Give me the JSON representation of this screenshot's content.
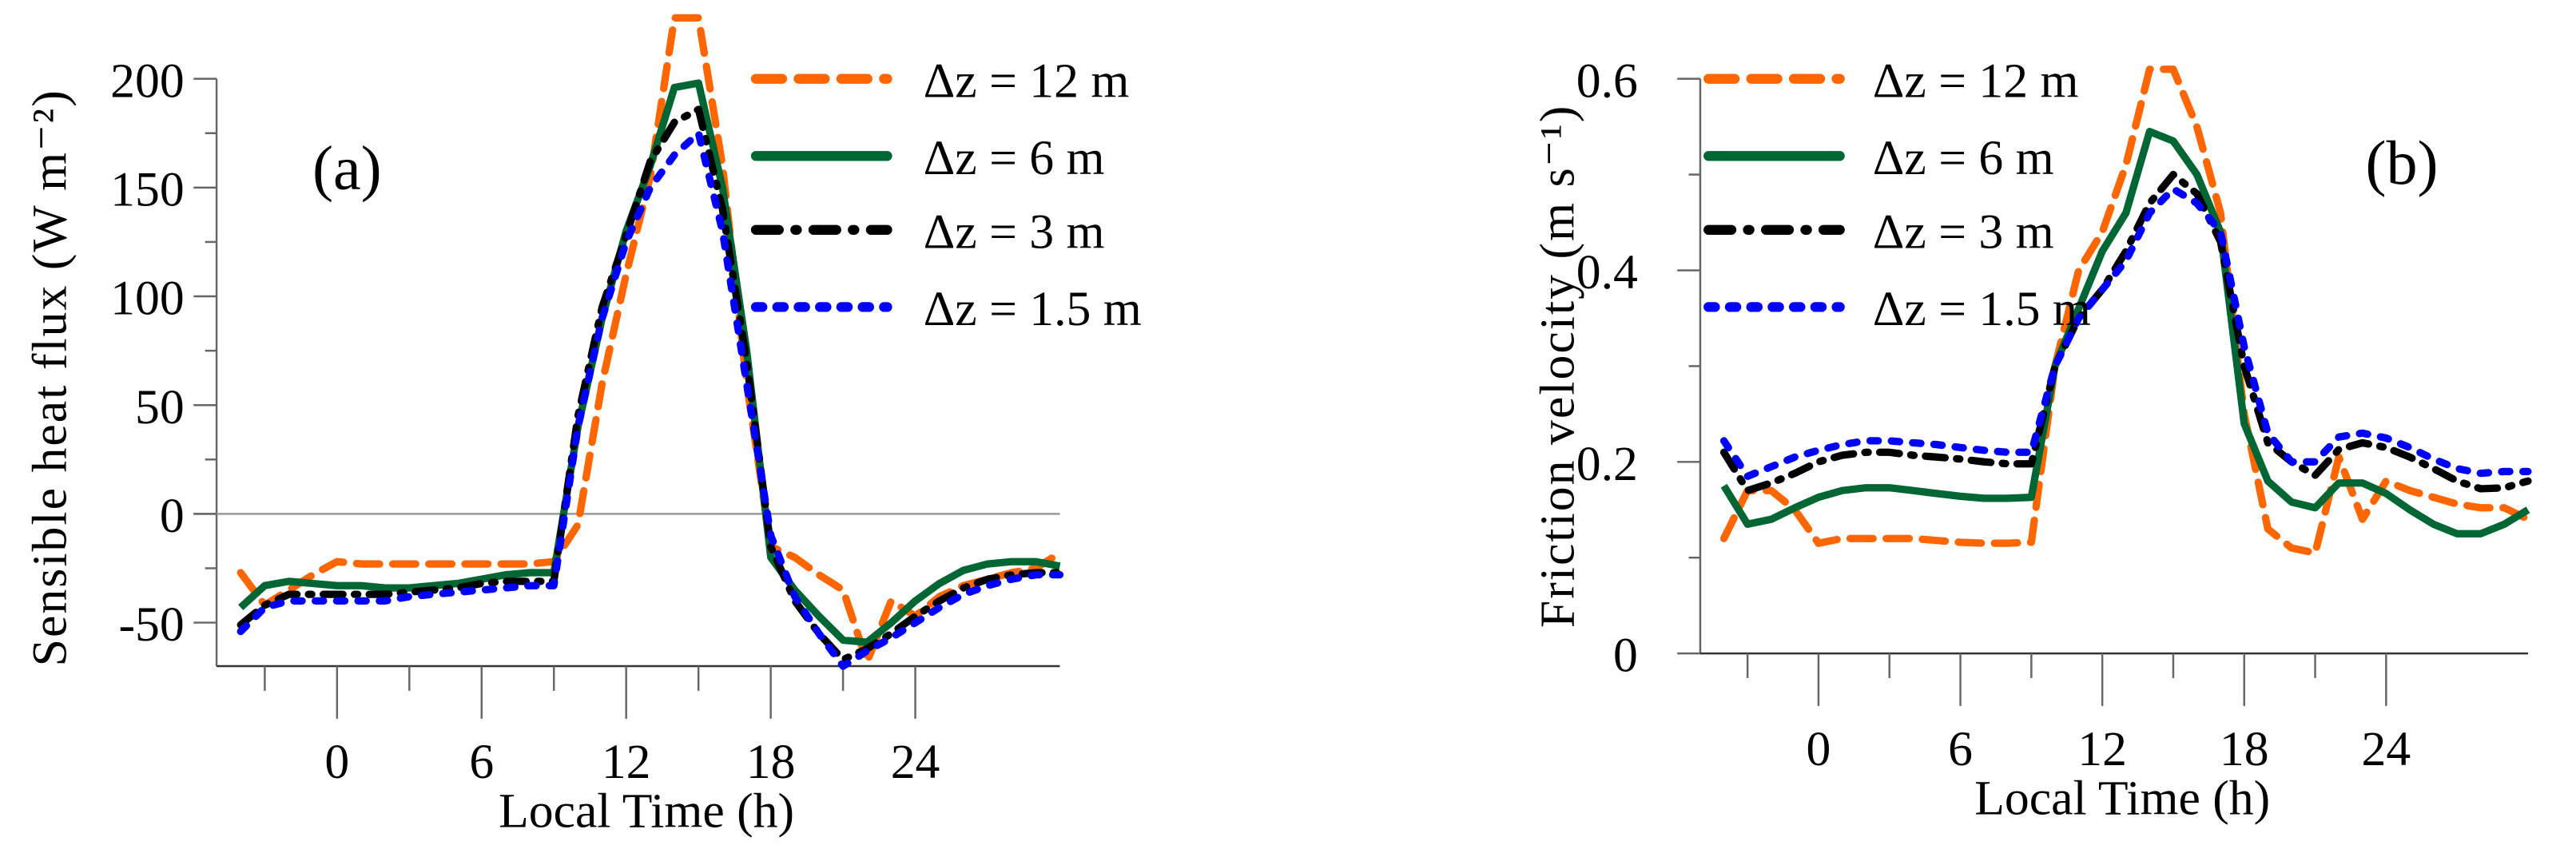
{
  "chart_data": [
    {
      "type": "line",
      "panel_label": "(a)",
      "xlabel": "Local Time (h)",
      "ylabel": "Sensible heat flux  (W m⁻²)",
      "xlim": [
        -5,
        30
      ],
      "ylim": [
        -70,
        200
      ],
      "xticks": [
        0,
        6,
        12,
        18,
        24
      ],
      "yticks": [
        -50,
        0,
        50,
        100,
        150,
        200
      ],
      "zero_line": true,
      "grid": false,
      "legend_position": "top-right",
      "x": [
        -4,
        -3,
        -2,
        -1,
        0,
        1,
        2,
        3,
        4,
        5,
        6,
        7,
        8,
        9,
        10,
        11,
        12,
        13,
        14,
        15,
        16,
        17,
        18,
        19,
        20,
        21,
        22,
        23,
        24,
        25,
        26,
        27,
        28,
        29,
        30
      ],
      "series": [
        {
          "name": "Δz = 12 m",
          "color": "#FF6600",
          "style": "dashed",
          "values": [
            -27,
            -42,
            -35,
            -28,
            -22,
            -23,
            -23,
            -23,
            -23,
            -23,
            -23,
            -23,
            -23,
            -22,
            -5,
            60,
            110,
            155,
            228,
            228,
            160,
            60,
            -15,
            -20,
            -28,
            -35,
            -68,
            -40,
            -47,
            -38,
            -33,
            -30,
            -27,
            -25,
            -18
          ]
        },
        {
          "name": "Δz = 6 m",
          "color": "#006633",
          "style": "solid",
          "values": [
            -43,
            -33,
            -31,
            -32,
            -33,
            -33,
            -34,
            -34,
            -33,
            -32,
            -30,
            -28,
            -27,
            -27,
            40,
            90,
            130,
            160,
            196,
            198,
            150,
            75,
            -20,
            -35,
            -47,
            -58,
            -59,
            -50,
            -40,
            -32,
            -26,
            -23,
            -22,
            -22,
            -24
          ]
        },
        {
          "name": "Δz = 3 m",
          "color": "#000000",
          "style": "dashdot",
          "values": [
            -51,
            -42,
            -37,
            -37,
            -37,
            -37,
            -37,
            -36,
            -35,
            -34,
            -32,
            -31,
            -31,
            -31,
            45,
            95,
            128,
            162,
            180,
            186,
            140,
            70,
            -15,
            -40,
            -55,
            -67,
            -62,
            -55,
            -47,
            -40,
            -34,
            -30,
            -28,
            -27,
            -27
          ]
        },
        {
          "name": "Δz = 1.5 m",
          "color": "#0000FF",
          "style": "dotted",
          "values": [
            -54,
            -43,
            -40,
            -40,
            -40,
            -40,
            -40,
            -38,
            -37,
            -36,
            -35,
            -34,
            -33,
            -33,
            40,
            90,
            125,
            150,
            165,
            175,
            130,
            60,
            -10,
            -38,
            -55,
            -70,
            -63,
            -57,
            -50,
            -43,
            -37,
            -33,
            -30,
            -28,
            -28
          ]
        }
      ]
    },
    {
      "type": "line",
      "panel_label": "(b)",
      "xlabel": "Local Time (h)",
      "ylabel": "Friction velocity  (m s⁻¹)",
      "xlim": [
        -5,
        30
      ],
      "ylim": [
        0,
        0.6
      ],
      "xticks": [
        0,
        6,
        12,
        18,
        24
      ],
      "yticks": [
        0,
        0.2,
        0.4,
        0.6
      ],
      "zero_line": false,
      "grid": false,
      "legend_position": "top-left",
      "x": [
        -4,
        -3,
        -2,
        -1,
        0,
        1,
        2,
        3,
        4,
        5,
        6,
        7,
        8,
        9,
        10,
        11,
        12,
        13,
        14,
        15,
        16,
        17,
        18,
        19,
        20,
        21,
        22,
        23,
        24,
        25,
        26,
        27,
        28,
        29,
        30
      ],
      "series": [
        {
          "name": "Δz = 12 m",
          "color": "#FF6600",
          "style": "dashed",
          "values": [
            0.12,
            0.17,
            0.17,
            0.15,
            0.115,
            0.12,
            0.12,
            0.12,
            0.12,
            0.118,
            0.116,
            0.115,
            0.115,
            0.116,
            0.3,
            0.4,
            0.44,
            0.51,
            0.61,
            0.61,
            0.55,
            0.46,
            0.25,
            0.13,
            0.11,
            0.105,
            0.205,
            0.14,
            0.18,
            0.17,
            0.163,
            0.156,
            0.152,
            0.152,
            0.14
          ]
        },
        {
          "name": "Δz = 6 m",
          "color": "#006633",
          "style": "solid",
          "values": [
            0.175,
            0.135,
            0.14,
            0.152,
            0.163,
            0.17,
            0.173,
            0.173,
            0.17,
            0.167,
            0.164,
            0.162,
            0.162,
            0.163,
            0.3,
            0.36,
            0.42,
            0.46,
            0.545,
            0.535,
            0.5,
            0.44,
            0.24,
            0.18,
            0.158,
            0.152,
            0.178,
            0.178,
            0.167,
            0.15,
            0.135,
            0.125,
            0.125,
            0.135,
            0.15
          ]
        },
        {
          "name": "Δz = 3 m",
          "color": "#000000",
          "style": "dashdot",
          "values": [
            0.21,
            0.17,
            0.178,
            0.188,
            0.2,
            0.207,
            0.21,
            0.21,
            0.207,
            0.205,
            0.203,
            0.2,
            0.198,
            0.198,
            0.3,
            0.35,
            0.38,
            0.42,
            0.47,
            0.5,
            0.48,
            0.43,
            0.3,
            0.22,
            0.2,
            0.186,
            0.213,
            0.22,
            0.215,
            0.205,
            0.193,
            0.18,
            0.172,
            0.173,
            0.18
          ]
        },
        {
          "name": "Δz = 1.5 m",
          "color": "#0000FF",
          "style": "dotted",
          "values": [
            0.222,
            0.185,
            0.195,
            0.205,
            0.212,
            0.218,
            0.222,
            0.222,
            0.22,
            0.218,
            0.215,
            0.212,
            0.21,
            0.21,
            0.3,
            0.35,
            0.38,
            0.41,
            0.46,
            0.485,
            0.47,
            0.44,
            0.32,
            0.23,
            0.2,
            0.2,
            0.226,
            0.23,
            0.225,
            0.215,
            0.203,
            0.193,
            0.188,
            0.19,
            0.19
          ]
        }
      ]
    }
  ]
}
